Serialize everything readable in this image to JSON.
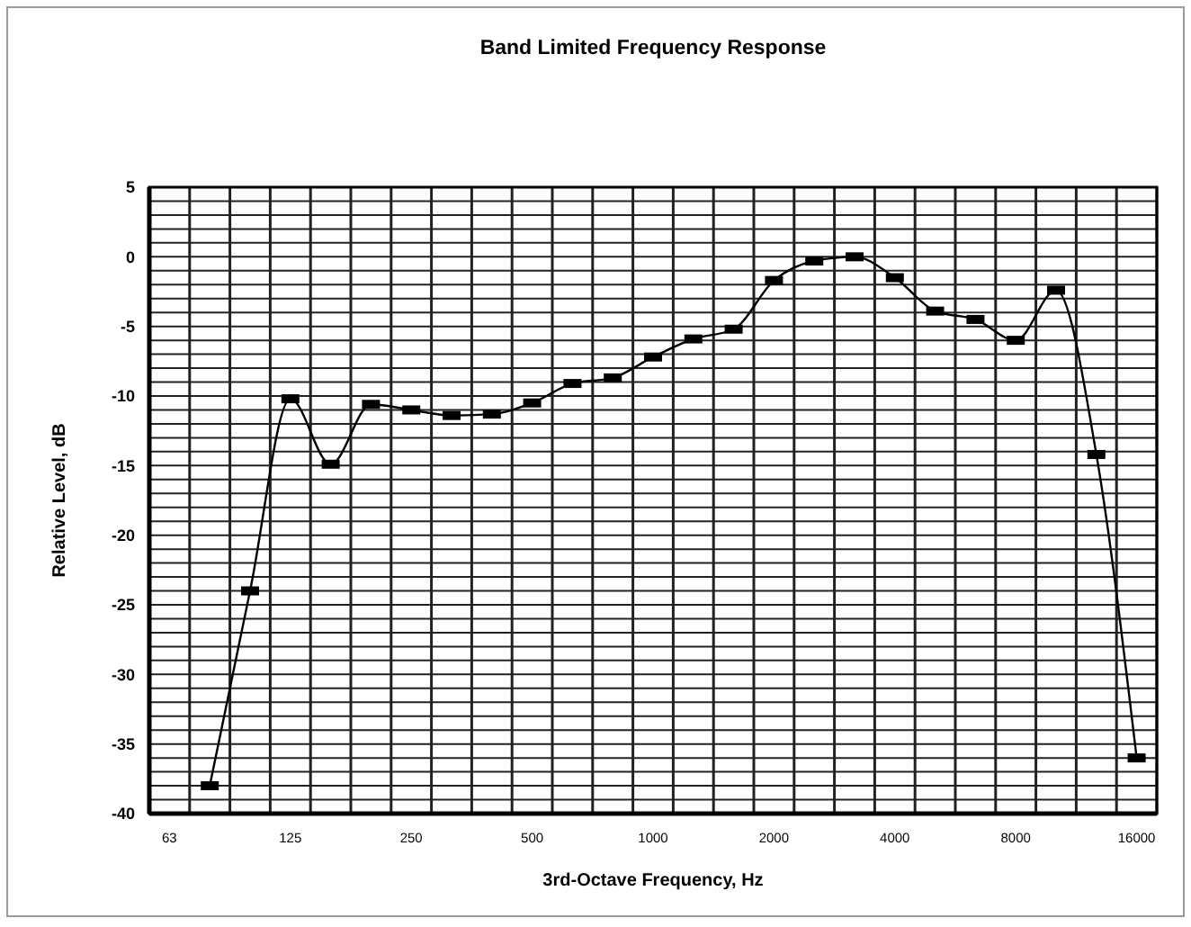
{
  "chart_data": {
    "type": "line",
    "title": "Band Limited Frequency Response",
    "xlabel": "3rd-Octave Frequency, Hz",
    "ylabel": "Relative Level, dB",
    "categories": [
      "63",
      null,
      null,
      "125",
      null,
      null,
      "250",
      null,
      null,
      "500",
      null,
      null,
      "1000",
      null,
      null,
      "2000",
      null,
      null,
      "4000",
      null,
      null,
      "8000",
      null,
      null,
      "16000"
    ],
    "series": [
      {
        "color": "#000000",
        "values": [
          null,
          -38,
          -24,
          -10.2,
          -14.9,
          -10.6,
          -11,
          -11.4,
          -11.3,
          -10.5,
          -9.1,
          -8.7,
          -7.2,
          -5.9,
          -5.2,
          -1.7,
          -0.3,
          0,
          -1.5,
          -3.9,
          -4.5,
          -6,
          -2.4,
          -14.2,
          -36
        ]
      }
    ],
    "ylim": [
      -40,
      5
    ],
    "yticks": [
      -40,
      {
        "value": -39,
        "label": null
      },
      {
        "value": -38,
        "label": null
      },
      {
        "value": -37,
        "label": null
      },
      {
        "value": -36,
        "label": null
      },
      -35,
      {
        "value": -34,
        "label": null
      },
      {
        "value": -33,
        "label": null
      },
      {
        "value": -32,
        "label": null
      },
      {
        "value": -31,
        "label": null
      },
      -30,
      {
        "value": -29,
        "label": null
      },
      {
        "value": -28,
        "label": null
      },
      {
        "value": -27,
        "label": null
      },
      {
        "value": -26,
        "label": null
      },
      -25,
      {
        "value": -24,
        "label": null
      },
      {
        "value": -23,
        "label": null
      },
      {
        "value": -22,
        "label": null
      },
      {
        "value": -21,
        "label": null
      },
      -20,
      {
        "value": -19,
        "label": null
      },
      {
        "value": -18,
        "label": null
      },
      {
        "value": -17,
        "label": null
      },
      {
        "value": -16,
        "label": null
      },
      -15,
      {
        "value": -14,
        "label": null
      },
      {
        "value": -13,
        "label": null
      },
      {
        "value": -12,
        "label": null
      },
      {
        "value": -11,
        "label": null
      },
      -10,
      {
        "value": -9,
        "label": null
      },
      {
        "value": -8,
        "label": null
      },
      {
        "value": -7,
        "label": null
      },
      {
        "value": -6,
        "label": null
      },
      -5,
      {
        "value": -4,
        "label": null
      },
      {
        "value": -3,
        "label": null
      },
      {
        "value": -2,
        "label": null
      },
      {
        "value": -1,
        "label": null
      },
      0,
      {
        "value": 1,
        "label": null
      },
      {
        "value": 2,
        "label": null
      },
      {
        "value": 3,
        "label": null
      },
      {
        "value": 4,
        "label": null
      },
      5
    ],
    "grid": true,
    "marker": "square",
    "line_style": "solid"
  }
}
